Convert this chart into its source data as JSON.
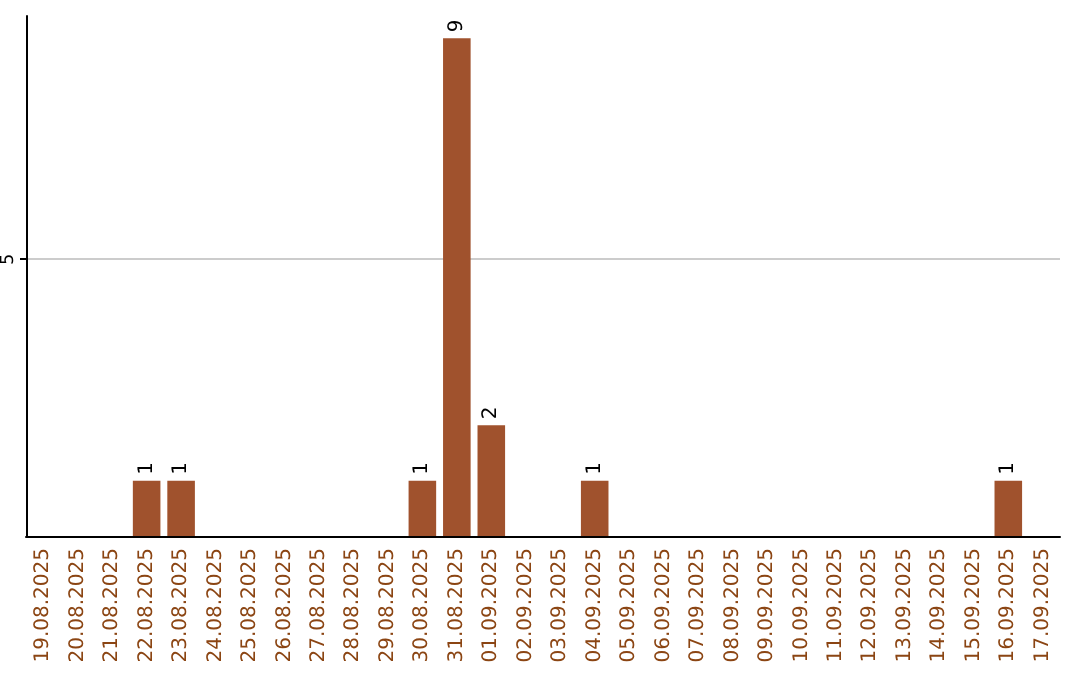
{
  "chart_data": {
    "type": "bar",
    "categories": [
      "19.08.2025",
      "20.08.2025",
      "21.08.2025",
      "22.08.2025",
      "23.08.2025",
      "24.08.2025",
      "25.08.2025",
      "26.08.2025",
      "27.08.2025",
      "28.08.2025",
      "29.08.2025",
      "30.08.2025",
      "31.08.2025",
      "01.09.2025",
      "02.09.2025",
      "03.09.2025",
      "04.09.2025",
      "05.09.2025",
      "06.09.2025",
      "07.09.2025",
      "08.09.2025",
      "09.09.2025",
      "10.09.2025",
      "11.09.2025",
      "12.09.2025",
      "13.09.2025",
      "14.09.2025",
      "15.09.2025",
      "16.09.2025",
      "17.09.2025"
    ],
    "values": [
      null,
      null,
      null,
      1,
      1,
      null,
      null,
      null,
      null,
      null,
      null,
      1,
      9,
      2,
      null,
      null,
      1,
      null,
      null,
      null,
      null,
      null,
      null,
      null,
      null,
      null,
      null,
      null,
      1,
      null
    ],
    "color": "#a0522d",
    "ylim": [
      0,
      9.4
    ],
    "yticks": [
      5
    ],
    "grid": "y",
    "data_labels": true
  }
}
